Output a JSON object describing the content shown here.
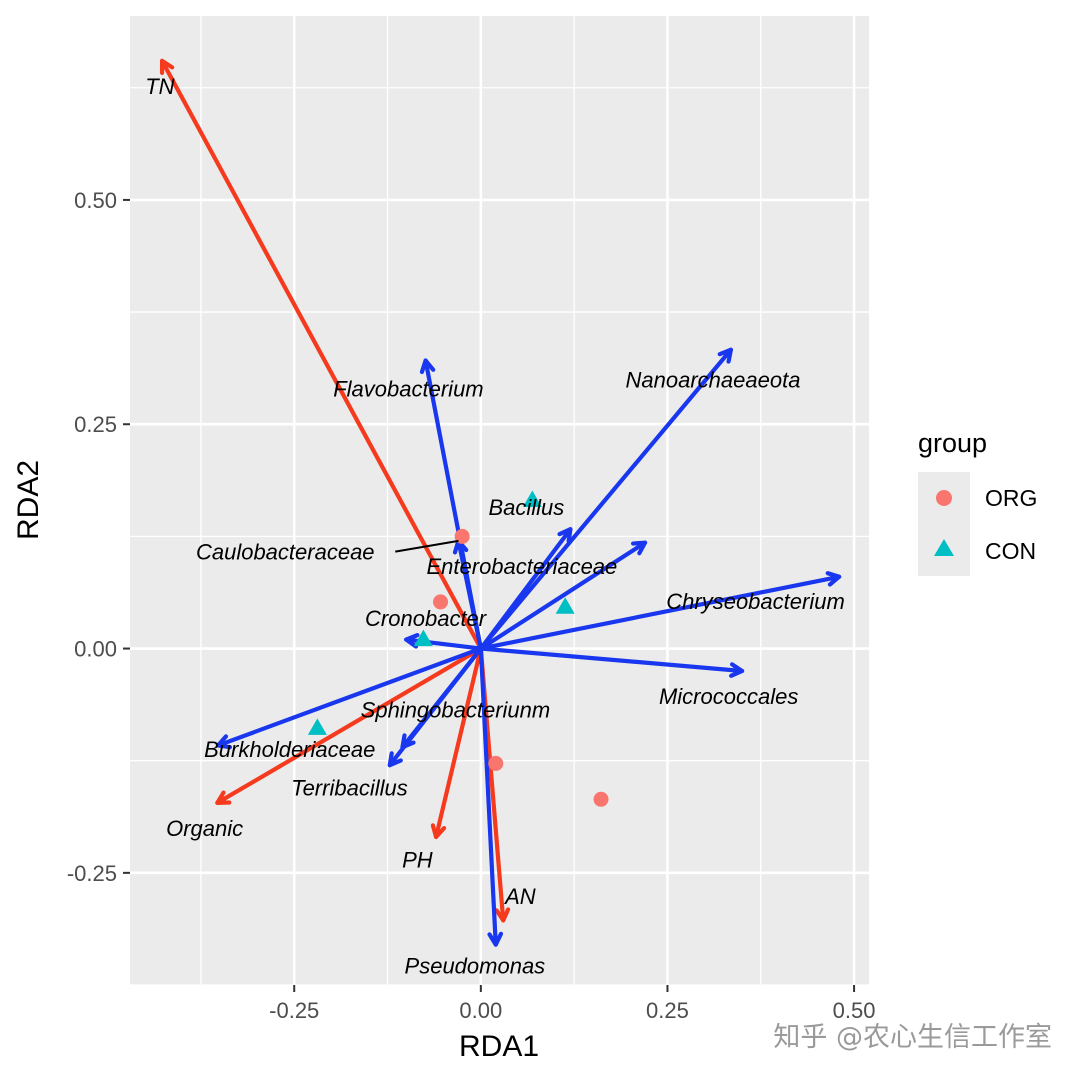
{
  "chart_data": {
    "type": "scatter",
    "xlabel": "RDA1",
    "ylabel": "RDA2",
    "xlim": [
      -0.47,
      0.52
    ],
    "ylim": [
      -0.375,
      0.705
    ],
    "x_ticks": [
      -0.25,
      0.0,
      0.25,
      0.5
    ],
    "x_tick_labels": [
      "-0.25",
      "0.00",
      "0.25",
      "0.50"
    ],
    "y_ticks": [
      -0.25,
      0.0,
      0.25,
      0.5
    ],
    "y_tick_labels": [
      "-0.25",
      "0.00",
      "0.25",
      "0.50"
    ],
    "grid": true,
    "legend": {
      "title": "group",
      "placement": "right",
      "entries": [
        {
          "label": "ORG",
          "shape": "circle",
          "color": "#f8766d"
        },
        {
          "label": "CON",
          "shape": "triangle",
          "color": "#00bfc4"
        }
      ]
    },
    "points": [
      {
        "group": "ORG",
        "x": -0.025,
        "y": 0.125
      },
      {
        "group": "ORG",
        "x": -0.054,
        "y": 0.052
      },
      {
        "group": "ORG",
        "x": 0.02,
        "y": -0.128
      },
      {
        "group": "ORG",
        "x": 0.161,
        "y": -0.168
      },
      {
        "group": "CON",
        "x": 0.069,
        "y": 0.165
      },
      {
        "group": "CON",
        "x": 0.113,
        "y": 0.046
      },
      {
        "group": "CON",
        "x": -0.077,
        "y": 0.01
      },
      {
        "group": "CON",
        "x": -0.219,
        "y": -0.089
      }
    ],
    "env_arrows": [
      {
        "name": "TN",
        "x": -0.427,
        "y": 0.655,
        "label_x": -0.43,
        "label_y": 0.627
      },
      {
        "name": "Organic",
        "x": -0.353,
        "y": -0.172,
        "label_x": -0.37,
        "label_y": -0.2
      },
      {
        "name": "PH",
        "x": -0.06,
        "y": -0.21,
        "label_x": -0.085,
        "label_y": -0.235
      },
      {
        "name": "AN",
        "x": 0.03,
        "y": -0.303,
        "label_x": 0.053,
        "label_y": -0.276
      }
    ],
    "species_arrows": [
      {
        "name": "Nanoarchaeaeota",
        "x": 0.335,
        "y": 0.333,
        "label_x": 0.311,
        "label_y": 0.3
      },
      {
        "name": "Flavobacterium",
        "x": -0.074,
        "y": 0.321,
        "label_x": -0.097,
        "label_y": 0.29
      },
      {
        "name": "Bacillus",
        "x": 0.12,
        "y": 0.133,
        "label_x": 0.061,
        "label_y": 0.158
      },
      {
        "name": "Enterobacteriaceae",
        "x": 0.22,
        "y": 0.118,
        "label_x": 0.055,
        "label_y": 0.092
      },
      {
        "name": "Chryseobacterium",
        "x": 0.48,
        "y": 0.08,
        "label_x": 0.368,
        "label_y": 0.053
      },
      {
        "name": "Cronobacter",
        "x": -0.1,
        "y": 0.01,
        "label_x": -0.074,
        "label_y": 0.034
      },
      {
        "name": "Micrococcales",
        "x": 0.35,
        "y": -0.025,
        "label_x": 0.332,
        "label_y": -0.053
      },
      {
        "name": "Sphingobacteriunm",
        "x": -0.105,
        "y": -0.11,
        "label_x": -0.034,
        "label_y": -0.068
      },
      {
        "name": "Burkholderiaceae",
        "x": -0.352,
        "y": -0.108,
        "label_x": -0.256,
        "label_y": -0.112
      },
      {
        "name": "Terribacillus",
        "x": -0.122,
        "y": -0.13,
        "label_x": -0.176,
        "label_y": -0.155
      },
      {
        "name": "Pseudomonas",
        "x": 0.02,
        "y": -0.33,
        "label_x": -0.008,
        "label_y": -0.353
      },
      {
        "name": "Caulobacteraceae",
        "x": -0.03,
        "y": 0.12,
        "label_x": -0.262,
        "label_y": 0.108
      }
    ],
    "colors": {
      "env_arrow": "#f53a1e",
      "species_arrow": "#1937ee",
      "panel_bg": "#ebebeb",
      "grid": "#ffffff"
    }
  },
  "watermark": "知乎 @农心生信工作室"
}
